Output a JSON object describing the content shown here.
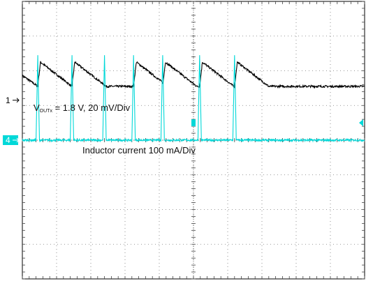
{
  "chart_data": {
    "type": "line",
    "description_free": true,
    "grid": true,
    "divisions": {
      "x": 10,
      "y": 8
    },
    "x": {
      "min": 0,
      "max": 10
    },
    "y": {
      "min": -4,
      "max": 4
    },
    "series": [
      {
        "key": "vout",
        "color": "#000000",
        "marker": "1",
        "label": {
          "prefix": "V",
          "sub": "OUTx",
          "suffix": " = 1.8 V, 20 mV/Div"
        },
        "spikes": [
          0.45,
          1.45,
          3.25,
          4.1,
          5.18,
          6.2
        ],
        "peak_div": 2.25,
        "trough_div": 1.55,
        "baseline_div": 1.15
      },
      {
        "key": "inductor",
        "color": "#00d8d8",
        "marker": "4",
        "label": "Inductor current 100 mA/Div",
        "spikes": [
          0.45,
          1.45,
          2.4,
          3.25,
          4.1,
          5.18,
          6.2
        ],
        "peak_div": 2.45,
        "baseline_div": 0
      }
    ],
    "ground_markers": [
      {
        "series": "vout",
        "text": "1",
        "position_div": 1.15
      },
      {
        "series": "inductor",
        "text": "4",
        "position_div": 0
      }
    ]
  }
}
